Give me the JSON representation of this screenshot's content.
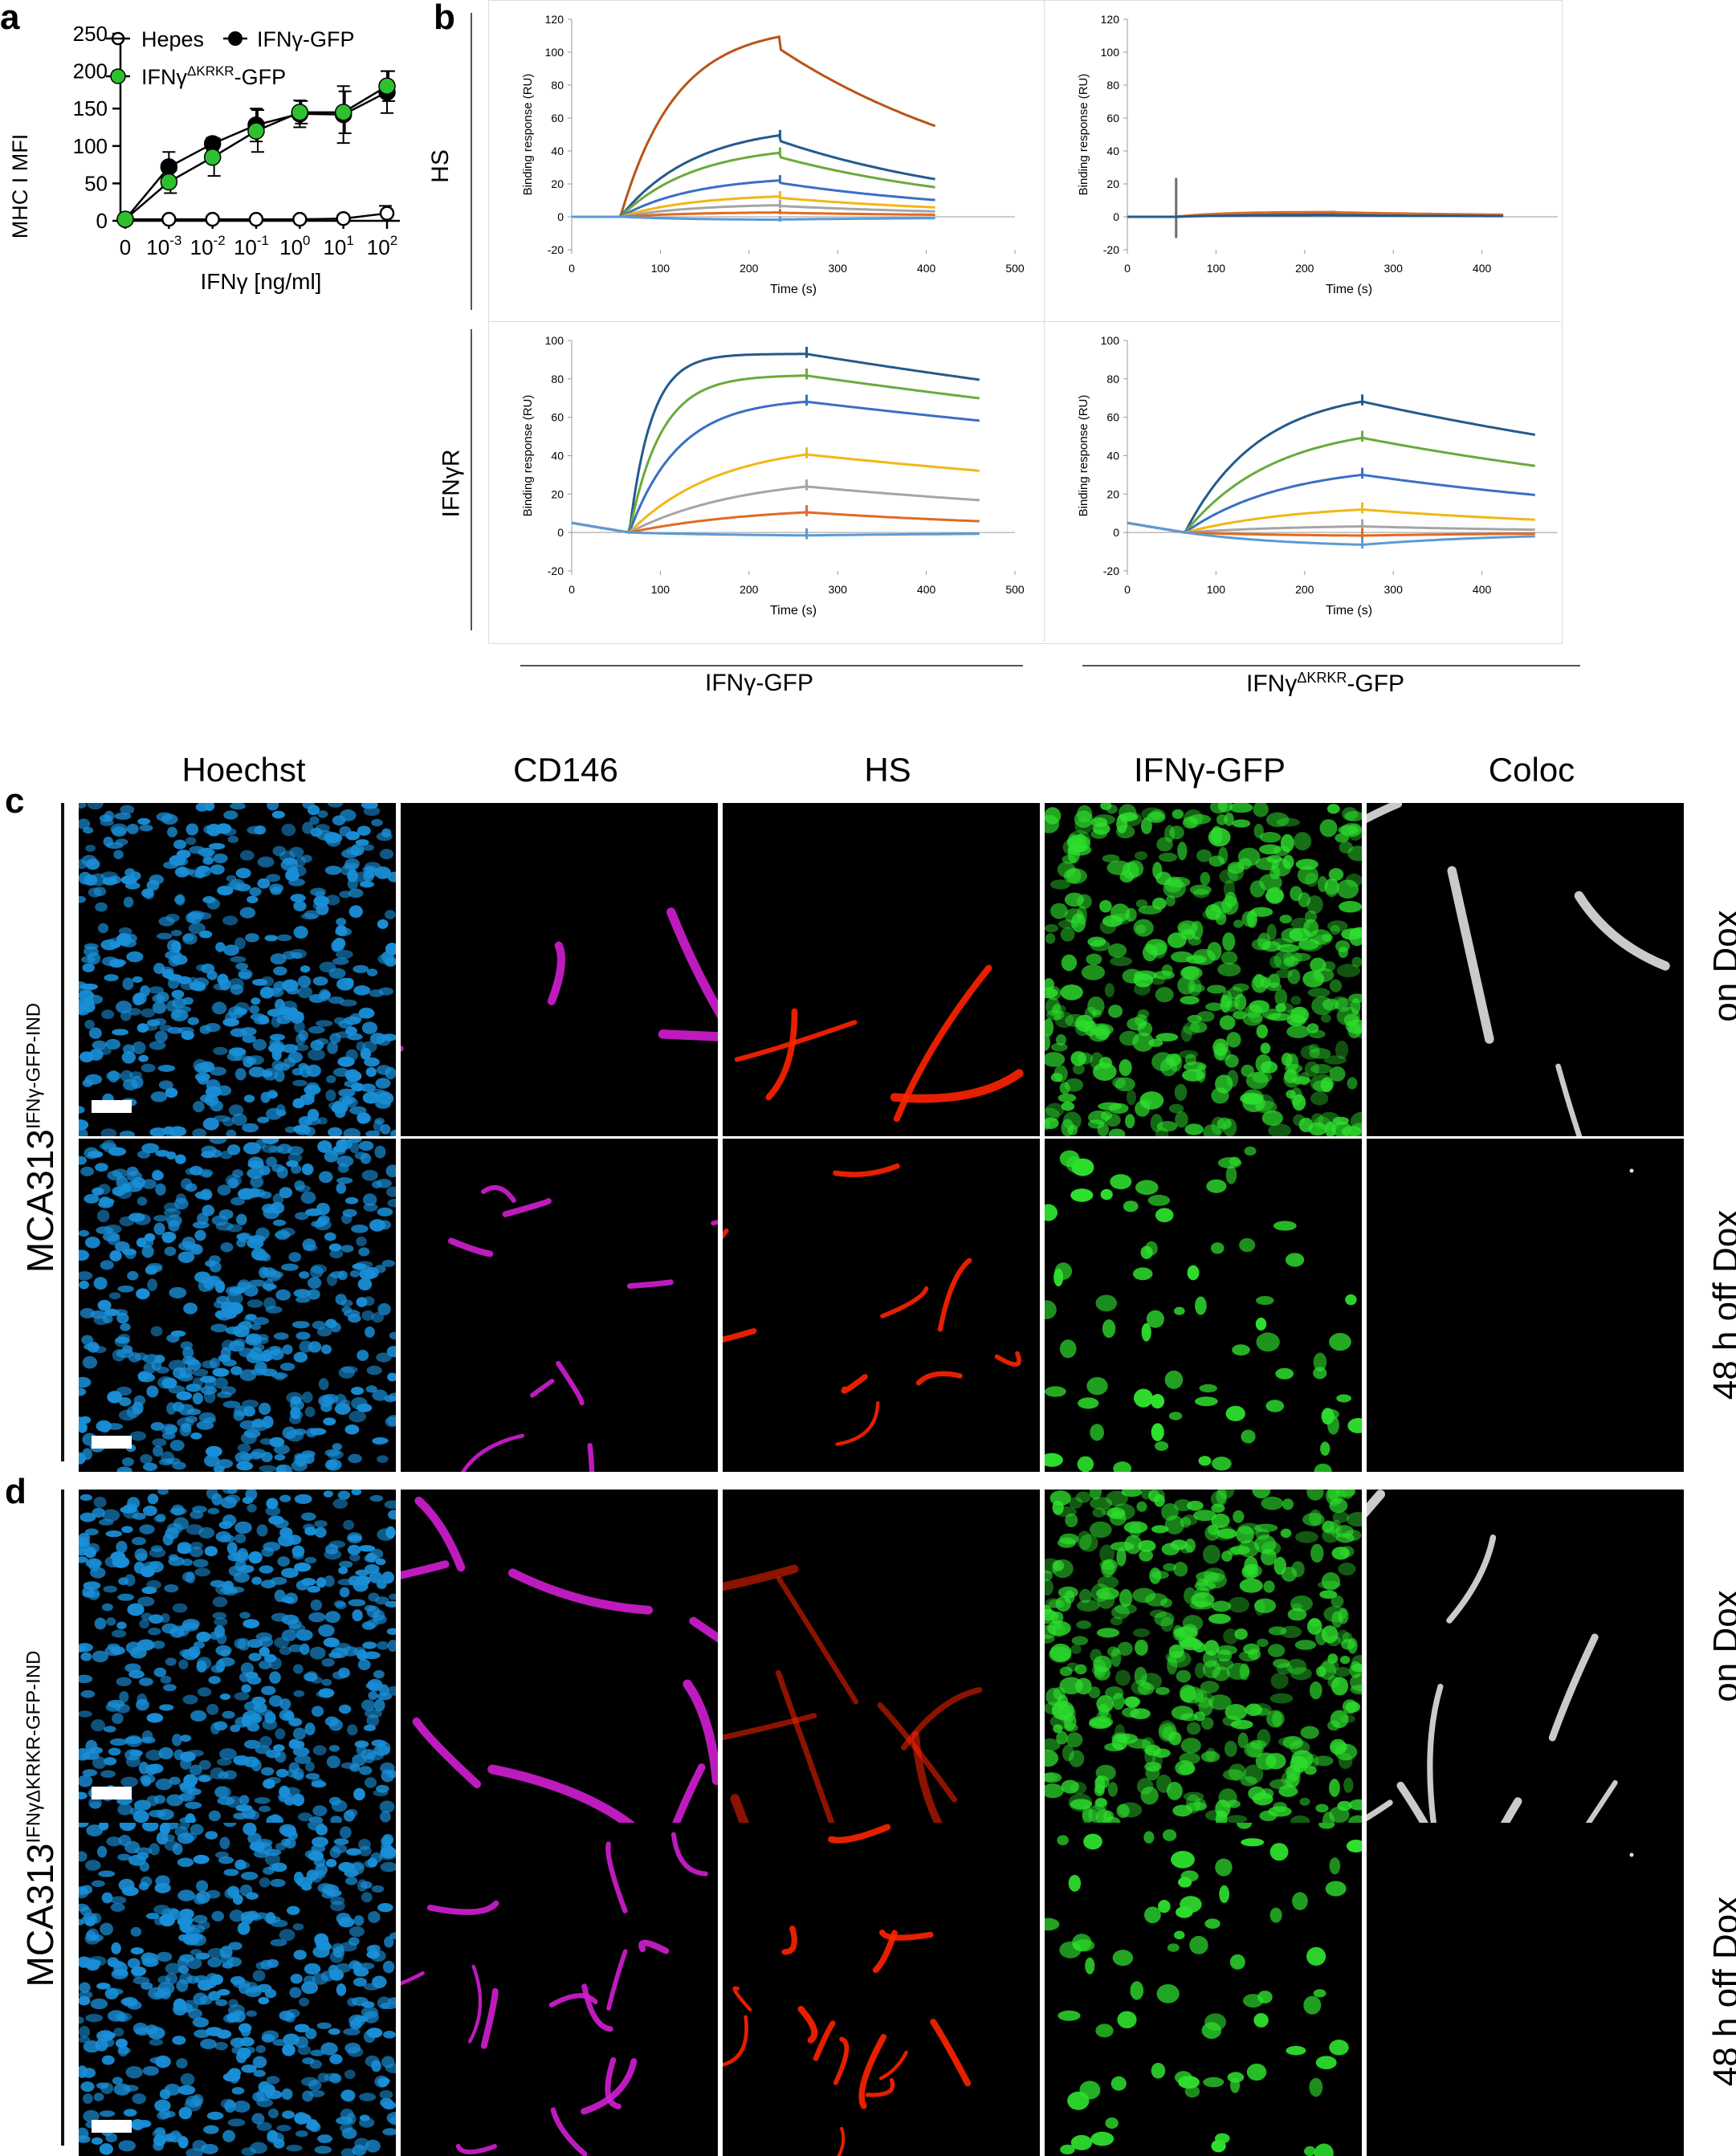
{
  "panels": {
    "a": "a",
    "b": "b",
    "c": "c",
    "d": "d"
  },
  "panel_a": {
    "ylabel": "MHC I MFI",
    "xlabel": "IFNγ [ng/ml]",
    "yticks": [
      "0",
      "50",
      "100",
      "150",
      "200",
      "250"
    ],
    "xticks": [
      "0",
      "10",
      "10",
      "10",
      "10",
      "10",
      "10"
    ],
    "xtick_exps": [
      "",
      "-3",
      "-2",
      "-1",
      "0",
      "1",
      "2"
    ],
    "legend": {
      "hepes": "Hepes",
      "wt": "IFNγ-GFP",
      "mut_base": "IFNγ",
      "mut_sup": "ΔKRKR",
      "mut_tail": "-GFP"
    }
  },
  "panel_b": {
    "axis_title_y": "Binding response (RU)",
    "axis_title_x": "Time (s)",
    "row_labels": [
      "HS",
      "IFNγR"
    ],
    "col_labels": {
      "wt": "IFNγ-GFP",
      "mut_base": "IFNγ",
      "mut_sup": "ΔKRKR",
      "mut_tail": "-GFP"
    },
    "xticks": [
      "0",
      "100",
      "200",
      "300",
      "400",
      "500"
    ],
    "yticks_hs": [
      "-20",
      "0",
      "20",
      "40",
      "60",
      "80",
      "100",
      "120"
    ],
    "yticks_r": [
      "-20",
      "0",
      "20",
      "40",
      "60",
      "80",
      "100"
    ]
  },
  "chart_data": [
    {
      "type": "line",
      "panel": "a",
      "ylabel": "MHC I MFI",
      "xlabel": "IFNγ [ng/ml]",
      "categories": [
        "0",
        "10^-3",
        "10^-2",
        "10^-1",
        "10^0",
        "10^1",
        "10^2"
      ],
      "ylim": [
        0,
        250
      ],
      "series": [
        {
          "name": "Hepes",
          "values": [
            2,
            2,
            2,
            2,
            2,
            3,
            10
          ],
          "errors": [
            0,
            0,
            0,
            0,
            0,
            0,
            10
          ],
          "color": "#ffffff"
        },
        {
          "name": "IFNγ-GFP",
          "values": [
            2,
            72,
            103,
            128,
            143,
            142,
            172
          ],
          "errors": [
            0,
            20,
            8,
            22,
            18,
            38,
            28
          ],
          "color": "#000000"
        },
        {
          "name": "IFNγΔKRKR-GFP",
          "values": [
            2,
            52,
            85,
            120,
            145,
            145,
            180
          ],
          "errors": [
            0,
            15,
            25,
            28,
            15,
            28,
            20
          ],
          "color": "#2ec02e"
        }
      ]
    },
    {
      "type": "line",
      "panel": "b",
      "subplot": "HS / IFNγ-GFP",
      "xlabel": "Time (s)",
      "ylabel": "Binding response (RU)",
      "xlim": [
        0,
        500
      ],
      "ylim": [
        -20,
        120
      ],
      "inject_start": 55,
      "inject_end": 235,
      "end": 410,
      "baseline": 0,
      "curves": [
        {
          "rmax": 116,
          "k": 0.016,
          "kd": 0.0035,
          "spike": 0,
          "color": "#b85418"
        },
        {
          "rmax": 56,
          "k": 0.012,
          "kd": 0.004,
          "spike": 3,
          "color": "#245a8c"
        },
        {
          "rmax": 44,
          "k": 0.012,
          "kd": 0.004,
          "spike": 3,
          "color": "#6aaa3c"
        },
        {
          "rmax": 25,
          "k": 0.012,
          "kd": 0.004,
          "spike": 3,
          "color": "#3a6fc4"
        },
        {
          "rmax": 14,
          "k": 0.012,
          "kd": 0.004,
          "spike": 3,
          "color": "#f2b716"
        },
        {
          "rmax": 8,
          "k": 0.012,
          "kd": 0.004,
          "spike": 3,
          "color": "#a5a5a5"
        },
        {
          "rmax": 3,
          "k": 0.012,
          "kd": 0.004,
          "spike": 2,
          "color": "#e06a22"
        },
        {
          "rmax": -2,
          "k": 0.012,
          "kd": 0.004,
          "spike": 2,
          "color": "#5b9bd5"
        }
      ]
    },
    {
      "type": "line",
      "panel": "b",
      "subplot": "HS / IFNγΔKRKR-GFP",
      "xlabel": "Time (s)",
      "ylabel": "Binding response (RU)",
      "xlim": [
        0,
        500
      ],
      "ylim": [
        -20,
        120
      ],
      "inject_start": 55,
      "inject_end": 235,
      "end": 425,
      "baseline": 0,
      "curves": [
        {
          "rmax": 2,
          "k": 0.02,
          "kd": 0.004,
          "spike": 22,
          "color": "#6e6e6e"
        },
        {
          "rmax": 3,
          "k": 0.02,
          "kd": 0.004,
          "spike": 0,
          "color": "#e06a22"
        },
        {
          "rmax": 1,
          "k": 0.02,
          "kd": 0.004,
          "spike": 0,
          "color": "#245a8c"
        }
      ]
    },
    {
      "type": "line",
      "panel": "b",
      "subplot": "IFNγR / IFNγ-GFP",
      "xlabel": "Time (s)",
      "ylabel": "Binding response (RU)",
      "xlim": [
        0,
        500
      ],
      "ylim": [
        -20,
        100
      ],
      "inject_start": 65,
      "inject_end": 265,
      "end": 460,
      "baseline": 5,
      "curves": [
        {
          "rmax": 93,
          "k": 0.04,
          "kd": 0.0008,
          "spike": 4,
          "color": "#245a8c"
        },
        {
          "rmax": 82,
          "k": 0.028,
          "kd": 0.0008,
          "spike": 4,
          "color": "#6aaa3c"
        },
        {
          "rmax": 70,
          "k": 0.018,
          "kd": 0.0008,
          "spike": 4,
          "color": "#3a6fc4"
        },
        {
          "rmax": 47,
          "k": 0.01,
          "kd": 0.0012,
          "spike": 4,
          "color": "#f2b716"
        },
        {
          "rmax": 30,
          "k": 0.008,
          "kd": 0.0018,
          "spike": 4,
          "color": "#a5a5a5"
        },
        {
          "rmax": 14,
          "k": 0.007,
          "kd": 0.003,
          "spike": 4,
          "color": "#e06a22"
        },
        {
          "rmax": -2,
          "k": 0.007,
          "kd": 0.004,
          "spike": 4,
          "color": "#5b9bd5"
        }
      ]
    },
    {
      "type": "line",
      "panel": "b",
      "subplot": "IFNγR / IFNγΔKRKR-GFP",
      "xlabel": "Time (s)",
      "ylabel": "Binding response (RU)",
      "xlim": [
        0,
        500
      ],
      "ylim": [
        -20,
        100
      ],
      "inject_start": 65,
      "inject_end": 265,
      "end": 460,
      "baseline": 5,
      "curves": [
        {
          "rmax": 75,
          "k": 0.012,
          "kd": 0.0015,
          "spike": 4,
          "color": "#245a8c"
        },
        {
          "rmax": 57,
          "k": 0.01,
          "kd": 0.0018,
          "spike": 4,
          "color": "#6aaa3c"
        },
        {
          "rmax": 36,
          "k": 0.009,
          "kd": 0.0022,
          "spike": 4,
          "color": "#3a6fc4"
        },
        {
          "rmax": 15,
          "k": 0.008,
          "kd": 0.003,
          "spike": 4,
          "color": "#f2b716"
        },
        {
          "rmax": 4,
          "k": 0.008,
          "kd": 0.004,
          "spike": 4,
          "color": "#a5a5a5"
        },
        {
          "rmax": -2,
          "k": 0.008,
          "kd": 0.005,
          "spike": 4,
          "color": "#e06a22"
        },
        {
          "rmax": -8,
          "k": 0.008,
          "kd": 0.006,
          "spike": 4,
          "color": "#5b9bd5"
        }
      ]
    }
  ],
  "microscopy": {
    "channels": [
      "Hoechst",
      "CD146",
      "HS",
      "IFNγ-GFP",
      "Coloc"
    ],
    "channel_colors": {
      "Hoechst": "#1a8fd8",
      "CD146": "#d21ed2",
      "HS": "#ff2200",
      "IFNγ-GFP": "#2ee02e",
      "Coloc": "#e0e0e0"
    },
    "conditions": [
      "on Dox",
      "48 h off Dox",
      "on Dox",
      "48 h off Dox"
    ],
    "cell_line_c": {
      "base": "MCA313",
      "sup": "IFNγ-GFP-IND"
    },
    "cell_line_d": {
      "base": "MCA313",
      "sup": "IFNγΔKRKR-GFP-IND"
    }
  }
}
